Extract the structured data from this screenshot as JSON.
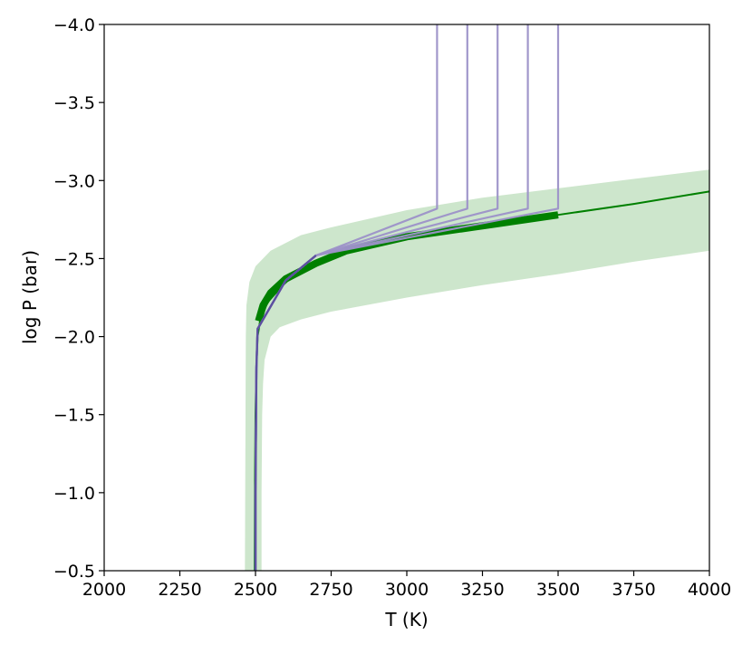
{
  "chart_data": {
    "type": "line",
    "title": "",
    "xlabel": "T (K)",
    "ylabel": "log P (bar)",
    "xlim": [
      2000,
      4000
    ],
    "ylim": [
      -0.5,
      -4.0
    ],
    "y_axis_inverted": true,
    "grid": false,
    "xticks": [
      2000,
      2250,
      2500,
      2750,
      3000,
      3250,
      3500,
      3750,
      4000
    ],
    "xtick_labels": [
      "2000",
      "2250",
      "2500",
      "2750",
      "3000",
      "3250",
      "3500",
      "3750",
      "4000"
    ],
    "yticks": [
      -4.0,
      -3.5,
      -3.0,
      -2.5,
      -2.0,
      -1.5,
      -1.0,
      -0.5
    ],
    "ytick_labels": [
      "−4.0",
      "−3.5",
      "−3.0",
      "−2.5",
      "−2.0",
      "−1.5",
      "−1.0",
      "−0.5"
    ],
    "colors": {
      "band": "#cde6cc",
      "median": "#008000",
      "profiles": "#9c91c8",
      "profile_core": "#5c4fa0"
    },
    "band": {
      "name": "",
      "upper": [
        [
          2465,
          -0.5
        ],
        [
          2466,
          -1.0
        ],
        [
          2467,
          -1.5
        ],
        [
          2468,
          -2.0
        ],
        [
          2470,
          -2.2
        ],
        [
          2480,
          -2.35
        ],
        [
          2500,
          -2.45
        ],
        [
          2550,
          -2.55
        ],
        [
          2650,
          -2.65
        ],
        [
          2750,
          -2.7
        ],
        [
          3000,
          -2.81
        ],
        [
          3250,
          -2.89
        ],
        [
          3500,
          -2.95
        ],
        [
          3750,
          -3.01
        ],
        [
          4000,
          -3.07
        ]
      ],
      "lower": [
        [
          4000,
          -2.55
        ],
        [
          3750,
          -2.48
        ],
        [
          3500,
          -2.4
        ],
        [
          3250,
          -2.33
        ],
        [
          3000,
          -2.25
        ],
        [
          2750,
          -2.16
        ],
        [
          2650,
          -2.11
        ],
        [
          2580,
          -2.06
        ],
        [
          2550,
          -2.0
        ],
        [
          2530,
          -1.85
        ],
        [
          2525,
          -1.7
        ],
        [
          2522,
          -1.5
        ],
        [
          2520,
          -1.0
        ],
        [
          2520,
          -0.5
        ]
      ]
    },
    "median_line": {
      "name": "",
      "points": [
        [
          2497,
          -0.5
        ],
        [
          2498,
          -1.0
        ],
        [
          2500,
          -1.5
        ],
        [
          2503,
          -1.8
        ],
        [
          2507,
          -2.0
        ],
        [
          2515,
          -2.1
        ],
        [
          2540,
          -2.22
        ],
        [
          2600,
          -2.35
        ],
        [
          2700,
          -2.47
        ],
        [
          2800,
          -2.55
        ],
        [
          3000,
          -2.65
        ],
        [
          3250,
          -2.72
        ],
        [
          3500,
          -2.78
        ],
        [
          3750,
          -2.85
        ],
        [
          4000,
          -2.93
        ]
      ]
    },
    "thick_line": {
      "name": "",
      "points": [
        [
          2510,
          -2.1
        ],
        [
          2525,
          -2.2
        ],
        [
          2550,
          -2.28
        ],
        [
          2600,
          -2.37
        ],
        [
          2700,
          -2.47
        ],
        [
          2800,
          -2.55
        ],
        [
          3000,
          -2.64
        ],
        [
          3250,
          -2.71
        ],
        [
          3500,
          -2.78
        ]
      ]
    },
    "profiles": [
      {
        "name": "",
        "points": [
          [
            2500,
            -0.5
          ],
          [
            2500,
            -1.0
          ],
          [
            2503,
            -1.8
          ],
          [
            2507,
            -2.05
          ],
          [
            2600,
            -2.36
          ],
          [
            2700,
            -2.52
          ],
          [
            3100,
            -2.82
          ],
          [
            3100,
            -4.0
          ]
        ]
      },
      {
        "name": "",
        "points": [
          [
            2500,
            -0.5
          ],
          [
            2500,
            -1.0
          ],
          [
            2503,
            -1.8
          ],
          [
            2507,
            -2.05
          ],
          [
            2600,
            -2.36
          ],
          [
            2700,
            -2.52
          ],
          [
            3200,
            -2.82
          ],
          [
            3200,
            -4.0
          ]
        ]
      },
      {
        "name": "",
        "points": [
          [
            2500,
            -0.5
          ],
          [
            2500,
            -1.0
          ],
          [
            2503,
            -1.8
          ],
          [
            2507,
            -2.05
          ],
          [
            2600,
            -2.36
          ],
          [
            2700,
            -2.52
          ],
          [
            3300,
            -2.82
          ],
          [
            3300,
            -4.0
          ]
        ]
      },
      {
        "name": "",
        "points": [
          [
            2500,
            -0.5
          ],
          [
            2500,
            -1.0
          ],
          [
            2503,
            -1.8
          ],
          [
            2507,
            -2.05
          ],
          [
            2600,
            -2.36
          ],
          [
            2700,
            -2.52
          ],
          [
            3400,
            -2.82
          ],
          [
            3400,
            -4.0
          ]
        ]
      },
      {
        "name": "",
        "points": [
          [
            2500,
            -0.5
          ],
          [
            2500,
            -1.0
          ],
          [
            2503,
            -1.8
          ],
          [
            2507,
            -2.05
          ],
          [
            2600,
            -2.36
          ],
          [
            2700,
            -2.52
          ],
          [
            3500,
            -2.82
          ],
          [
            3500,
            -4.0
          ]
        ]
      }
    ]
  }
}
